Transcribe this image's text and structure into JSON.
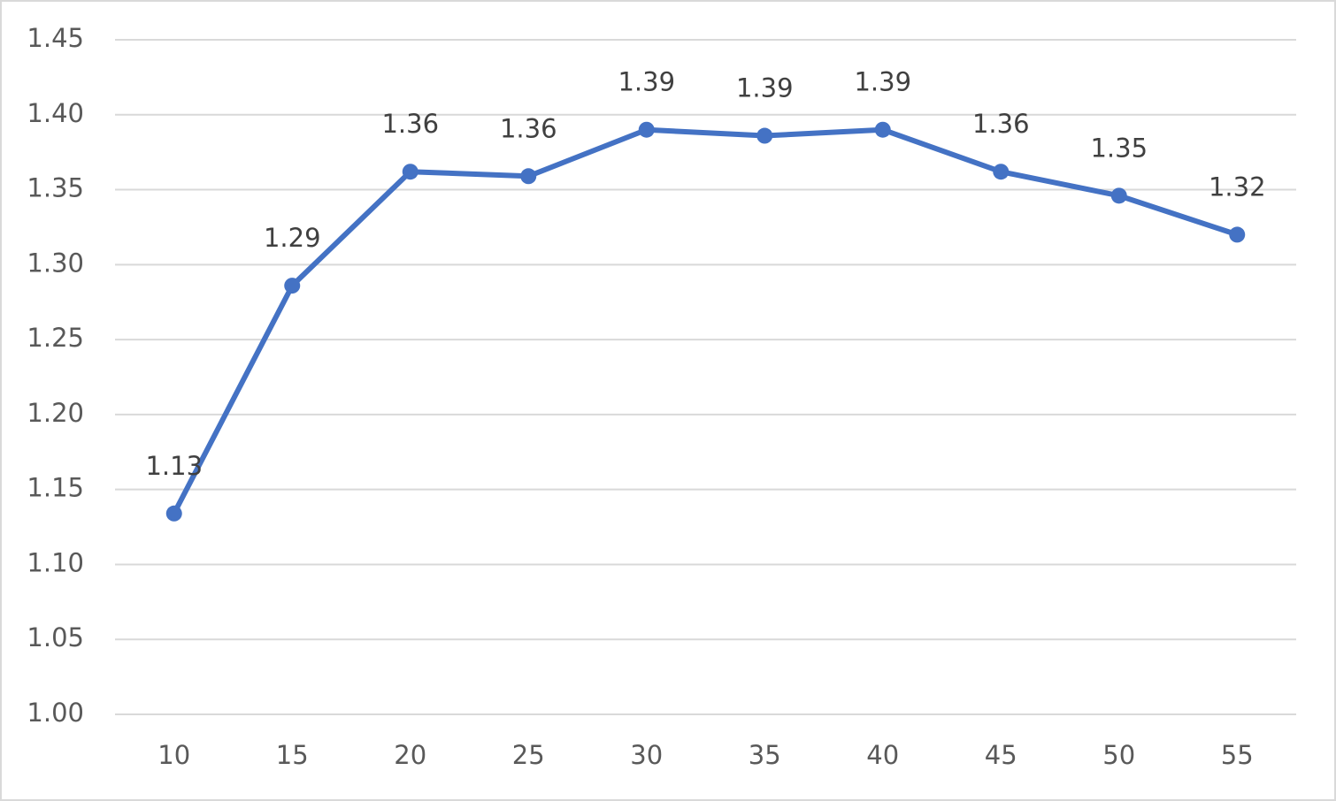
{
  "chart_data": {
    "type": "line",
    "categories": [
      "10",
      "15",
      "20",
      "25",
      "30",
      "35",
      "40",
      "45",
      "50",
      "55"
    ],
    "series": [
      {
        "color": "#4472c4",
        "values": [
          1.134,
          1.286,
          1.362,
          1.359,
          1.39,
          1.386,
          1.39,
          1.362,
          1.346,
          1.32
        ],
        "value_labels": [
          "1.13",
          "1.29",
          "1.36",
          "1.36",
          "1.39",
          "1.39",
          "1.39",
          "1.36",
          "1.35",
          "1.32"
        ]
      }
    ],
    "ylim": [
      1.0,
      1.45
    ],
    "yticks": [
      {
        "value": 1.0,
        "label": "1.00"
      },
      1.05,
      {
        "value": 1.1,
        "label": "1.10"
      },
      1.15,
      {
        "value": 1.2,
        "label": "1.20"
      },
      1.25,
      {
        "value": 1.3,
        "label": "1.30"
      },
      1.35,
      {
        "value": 1.4,
        "label": "1.40"
      },
      1.45
    ],
    "grid": true
  }
}
